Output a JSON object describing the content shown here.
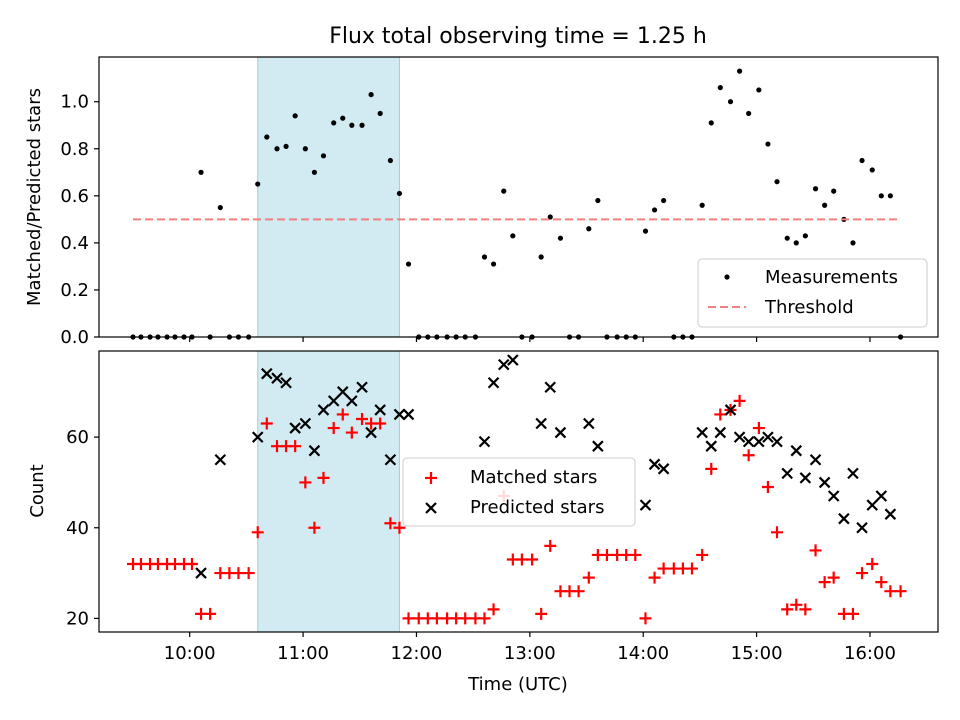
{
  "chart_data": [
    {
      "type": "scatter",
      "title": "Flux total observing time = 1.25 h",
      "xlabel": "",
      "ylabel": "Matched/Predicted stars",
      "xlim": [
        9.2,
        16.6
      ],
      "ylim": [
        0.0,
        1.19
      ],
      "x_ticks": [
        10,
        11,
        12,
        13,
        14,
        15,
        16
      ],
      "y_ticks": [
        0.0,
        0.2,
        0.4,
        0.6,
        0.8,
        1.0
      ],
      "y_tick_labels": [
        "0.0",
        "0.2",
        "0.4",
        "0.6",
        "0.8",
        "1.0"
      ],
      "shaded_x_range": [
        10.6,
        11.85
      ],
      "shaded_color": "#add8e6",
      "legend_position": "lower right",
      "series": [
        {
          "name": "Measurements",
          "marker": "dot",
          "color": "#000000",
          "x": [
            9.5,
            9.57,
            9.65,
            9.72,
            9.8,
            9.87,
            9.95,
            10.02,
            10.1,
            10.18,
            10.27,
            10.35,
            10.43,
            10.52,
            10.6,
            10.68,
            10.77,
            10.85,
            10.93,
            11.02,
            11.1,
            11.18,
            11.27,
            11.35,
            11.43,
            11.52,
            11.6,
            11.68,
            11.77,
            11.85,
            11.93,
            12.02,
            12.1,
            12.18,
            12.27,
            12.35,
            12.43,
            12.52,
            12.6,
            12.68,
            12.77,
            12.85,
            12.93,
            13.02,
            13.1,
            13.18,
            13.27,
            13.35,
            13.43,
            13.52,
            13.6,
            13.68,
            13.77,
            13.85,
            13.93,
            14.02,
            14.1,
            14.18,
            14.27,
            14.35,
            14.43,
            14.52,
            14.6,
            14.68,
            14.77,
            14.85,
            14.93,
            15.02,
            15.1,
            15.18,
            15.27,
            15.35,
            15.43,
            15.52,
            15.6,
            15.68,
            15.77,
            15.85,
            15.93,
            16.02,
            16.1,
            16.18,
            16.27
          ],
          "y": [
            0.0,
            0.0,
            0.0,
            0.0,
            0.0,
            0.0,
            0.0,
            0.0,
            0.7,
            0.0,
            0.55,
            0.0,
            0.0,
            0.0,
            0.65,
            0.85,
            0.8,
            0.81,
            0.94,
            0.8,
            0.7,
            0.77,
            0.91,
            0.93,
            0.9,
            0.9,
            1.03,
            0.95,
            0.75,
            0.61,
            0.31,
            0.0,
            0.0,
            0.0,
            0.0,
            0.0,
            0.0,
            0.0,
            0.34,
            0.31,
            0.62,
            0.43,
            0.0,
            0.0,
            0.34,
            0.51,
            0.42,
            0.0,
            0.0,
            0.46,
            0.58,
            0.0,
            0.0,
            0.0,
            0.0,
            0.45,
            0.54,
            0.58,
            0.0,
            0.0,
            0.0,
            0.56,
            0.91,
            1.06,
            1.0,
            1.13,
            0.95,
            1.05,
            0.82,
            0.66,
            0.42,
            0.4,
            0.43,
            0.63,
            0.56,
            0.62,
            0.5,
            0.4,
            0.75,
            0.71,
            0.6,
            0.6,
            0.0
          ]
        },
        {
          "name": "Threshold",
          "marker": "dashed-line",
          "color": "#f08080",
          "x": [
            9.5,
            16.25
          ],
          "y": [
            0.5,
            0.5
          ]
        }
      ]
    },
    {
      "type": "scatter",
      "title": "",
      "xlabel": "Time (UTC)",
      "ylabel": "Count",
      "xlim": [
        9.2,
        16.6
      ],
      "ylim": [
        17,
        79
      ],
      "x_ticks": [
        10,
        11,
        12,
        13,
        14,
        15,
        16
      ],
      "x_tick_labels": [
        "10:00",
        "11:00",
        "12:00",
        "13:00",
        "14:00",
        "15:00",
        "16:00"
      ],
      "y_ticks": [
        20,
        40,
        60
      ],
      "y_tick_labels": [
        "20",
        "40",
        "60"
      ],
      "shaded_x_range": [
        10.6,
        11.85
      ],
      "shaded_color": "#add8e6",
      "legend_position": "center",
      "series": [
        {
          "name": "Matched stars",
          "marker": "plus",
          "color": "#ff0000",
          "x": [
            9.5,
            9.57,
            9.65,
            9.72,
            9.8,
            9.87,
            9.95,
            10.02,
            10.1,
            10.18,
            10.27,
            10.35,
            10.43,
            10.52,
            10.6,
            10.68,
            10.77,
            10.85,
            10.93,
            11.02,
            11.1,
            11.18,
            11.27,
            11.35,
            11.43,
            11.52,
            11.6,
            11.68,
            11.77,
            11.85,
            11.93,
            12.02,
            12.1,
            12.18,
            12.27,
            12.35,
            12.43,
            12.52,
            12.6,
            12.68,
            12.77,
            12.85,
            12.93,
            13.02,
            13.1,
            13.18,
            13.27,
            13.35,
            13.43,
            13.52,
            13.6,
            13.68,
            13.77,
            13.85,
            13.93,
            14.02,
            14.1,
            14.18,
            14.27,
            14.35,
            14.43,
            14.52,
            14.6,
            14.68,
            14.77,
            14.85,
            14.93,
            15.02,
            15.1,
            15.18,
            15.27,
            15.35,
            15.43,
            15.52,
            15.6,
            15.68,
            15.77,
            15.85,
            15.93,
            16.02,
            16.1,
            16.18,
            16.27
          ],
          "y": [
            32,
            32,
            32,
            32,
            32,
            32,
            32,
            32,
            21,
            21,
            30,
            30,
            30,
            30,
            39,
            63,
            58,
            58,
            58,
            50,
            40,
            51,
            62,
            65,
            61,
            64,
            63,
            63,
            41,
            40,
            20,
            20,
            20,
            20,
            20,
            20,
            20,
            20,
            20,
            22,
            47,
            33,
            33,
            33,
            21,
            36,
            26,
            26,
            26,
            29,
            34,
            34,
            34,
            34,
            34,
            20,
            29,
            31,
            31,
            31,
            31,
            34,
            53,
            65,
            66,
            68,
            56,
            62,
            49,
            39,
            22,
            23,
            22,
            35,
            28,
            29,
            21,
            21,
            30,
            32,
            28,
            26,
            26
          ]
        },
        {
          "name": "Predicted stars",
          "marker": "x",
          "color": "#000000",
          "x": [
            10.1,
            10.27,
            10.6,
            10.68,
            10.77,
            10.85,
            10.93,
            11.02,
            11.1,
            11.18,
            11.27,
            11.35,
            11.43,
            11.52,
            11.6,
            11.68,
            11.77,
            11.85,
            11.93,
            12.6,
            12.68,
            12.77,
            12.85,
            13.1,
            13.18,
            13.27,
            13.52,
            13.6,
            14.02,
            14.1,
            14.18,
            14.52,
            14.6,
            14.68,
            14.77,
            14.85,
            14.93,
            15.02,
            15.1,
            15.18,
            15.27,
            15.35,
            15.43,
            15.52,
            15.6,
            15.68,
            15.77,
            15.85,
            15.93,
            16.02,
            16.1,
            16.18
          ],
          "y": [
            30,
            55,
            60,
            74,
            73,
            72,
            62,
            63,
            57,
            66,
            68,
            70,
            68,
            71,
            61,
            66,
            55,
            65,
            65,
            59,
            72,
            76,
            77,
            63,
            71,
            61,
            63,
            58,
            45,
            54,
            53,
            61,
            58,
            61,
            66,
            60,
            59,
            59,
            60,
            59,
            52,
            57,
            51,
            55,
            50,
            47,
            42,
            52,
            40,
            45,
            47,
            43
          ]
        }
      ]
    }
  ]
}
